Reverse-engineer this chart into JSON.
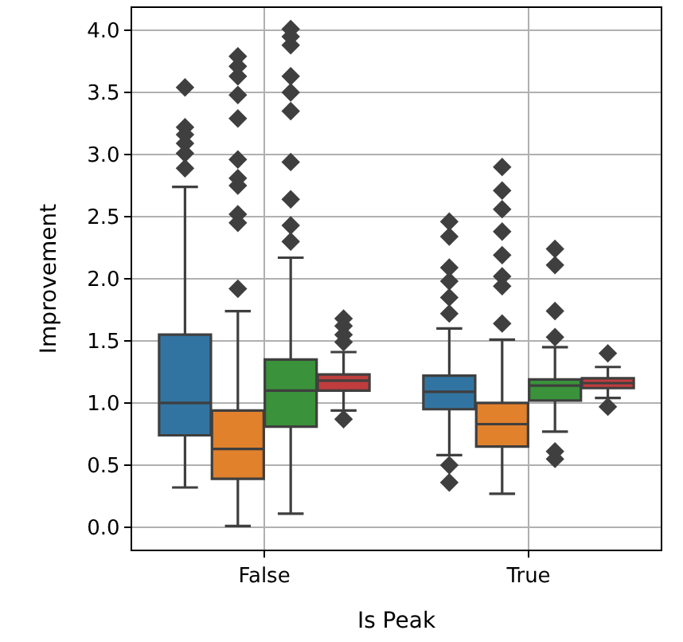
{
  "chart_data": {
    "type": "box",
    "xlabel": "Is Peak",
    "ylabel": "Improvement",
    "categories": [
      "False",
      "True"
    ],
    "ylim": [
      -0.18,
      4.18
    ],
    "yticks": [
      {
        "value": 0,
        "label": "0.0"
      },
      {
        "value": 0.5,
        "label": "0.5"
      },
      {
        "value": 1,
        "label": "1.0"
      },
      {
        "value": 1.5,
        "label": "1.5"
      },
      {
        "value": 2,
        "label": "2.0"
      },
      {
        "value": 2.5,
        "label": "2.5"
      },
      {
        "value": 3,
        "label": "3.0"
      },
      {
        "value": 3.5,
        "label": "3.5"
      },
      {
        "value": 4,
        "label": "4.0"
      }
    ],
    "grid": true,
    "marker": "diamond",
    "series": [
      {
        "color": "#3274a1",
        "boxes": [
          {
            "low": 0.32,
            "q1": 0.74,
            "median": 1.0,
            "q3": 1.55,
            "high": 2.74,
            "outliers": [
              3.54,
              3.22,
              3.16,
              3.09,
              3.01,
              2.89
            ]
          },
          {
            "low": 0.58,
            "q1": 0.95,
            "median": 1.09,
            "q3": 1.22,
            "high": 1.6,
            "outliers": [
              0.5,
              0.36,
              1.72,
              1.85,
              1.98,
              2.09,
              2.34,
              2.46
            ]
          }
        ]
      },
      {
        "color": "#e1812c",
        "boxes": [
          {
            "low": 0.01,
            "q1": 0.39,
            "median": 0.63,
            "q3": 0.94,
            "high": 1.74,
            "outliers": [
              1.92,
              2.45,
              2.52,
              2.75,
              2.81,
              2.96,
              3.29,
              3.48,
              3.63,
              3.71,
              3.79
            ]
          },
          {
            "low": 0.27,
            "q1": 0.65,
            "median": 0.83,
            "q3": 1.0,
            "high": 1.51,
            "outliers": [
              1.64,
              1.94,
              2.02,
              2.19,
              2.38,
              2.56,
              2.71,
              2.9
            ]
          }
        ]
      },
      {
        "color": "#3a923a",
        "boxes": [
          {
            "low": 0.11,
            "q1": 0.81,
            "median": 1.1,
            "q3": 1.35,
            "high": 2.17,
            "outliers": [
              2.3,
              2.43,
              2.64,
              2.94,
              3.35,
              3.5,
              3.63,
              3.88,
              3.95,
              4.01
            ]
          },
          {
            "low": 0.77,
            "q1": 1.02,
            "median": 1.14,
            "q3": 1.19,
            "high": 1.45,
            "outliers": [
              0.61,
              0.55,
              1.53,
              1.74,
              2.11,
              2.24
            ]
          }
        ]
      },
      {
        "color": "#c03d3e",
        "boxes": [
          {
            "low": 0.94,
            "q1": 1.1,
            "median": 1.18,
            "q3": 1.23,
            "high": 1.41,
            "outliers": [
              0.87,
              1.49,
              1.55,
              1.62,
              1.68
            ]
          },
          {
            "low": 1.04,
            "q1": 1.12,
            "median": 1.16,
            "q3": 1.2,
            "high": 1.29,
            "outliers": [
              0.97,
              1.4
            ]
          }
        ]
      }
    ]
  }
}
